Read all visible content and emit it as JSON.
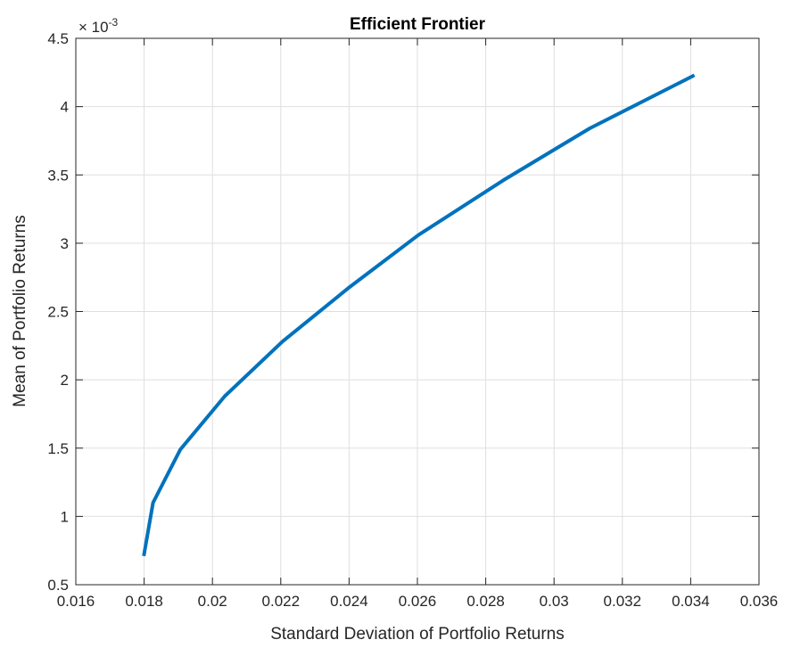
{
  "chart_data": {
    "type": "line",
    "title": "Efficient Frontier",
    "xlabel": "Standard Deviation of Portfolio Returns",
    "ylabel": "Mean of Portfolio Returns",
    "xlim": [
      0.016,
      0.036
    ],
    "ylim": [
      0.0005,
      0.0045
    ],
    "xticks": [
      0.016,
      0.018,
      0.02,
      0.022,
      0.024,
      0.026,
      0.028,
      0.03,
      0.032,
      0.034,
      0.036
    ],
    "xtick_labels": [
      "0.016",
      "0.018",
      "0.02",
      "0.022",
      "0.024",
      "0.026",
      "0.028",
      "0.03",
      "0.032",
      "0.034",
      "0.036"
    ],
    "yticks": [
      0.0005,
      0.001,
      0.0015,
      0.002,
      0.0025,
      0.003,
      0.0035,
      0.004,
      0.0045
    ],
    "ytick_labels": [
      "0.5",
      "1",
      "1.5",
      "2",
      "2.5",
      "3",
      "3.5",
      "4",
      "4.5"
    ],
    "y_exponent_label": {
      "base": "× 10",
      "exponent": "-3"
    },
    "grid": true,
    "series": [
      {
        "color": "#0072BD",
        "x": [
          0.01799,
          0.01826,
          0.01906,
          0.02036,
          0.02205,
          0.02397,
          0.02603,
          0.02851,
          0.03104,
          0.03411
        ],
        "y": [
          0.00071,
          0.0011,
          0.00149,
          0.00188,
          0.00228,
          0.00267,
          0.00306,
          0.00346,
          0.00384,
          0.00423
        ]
      }
    ]
  }
}
